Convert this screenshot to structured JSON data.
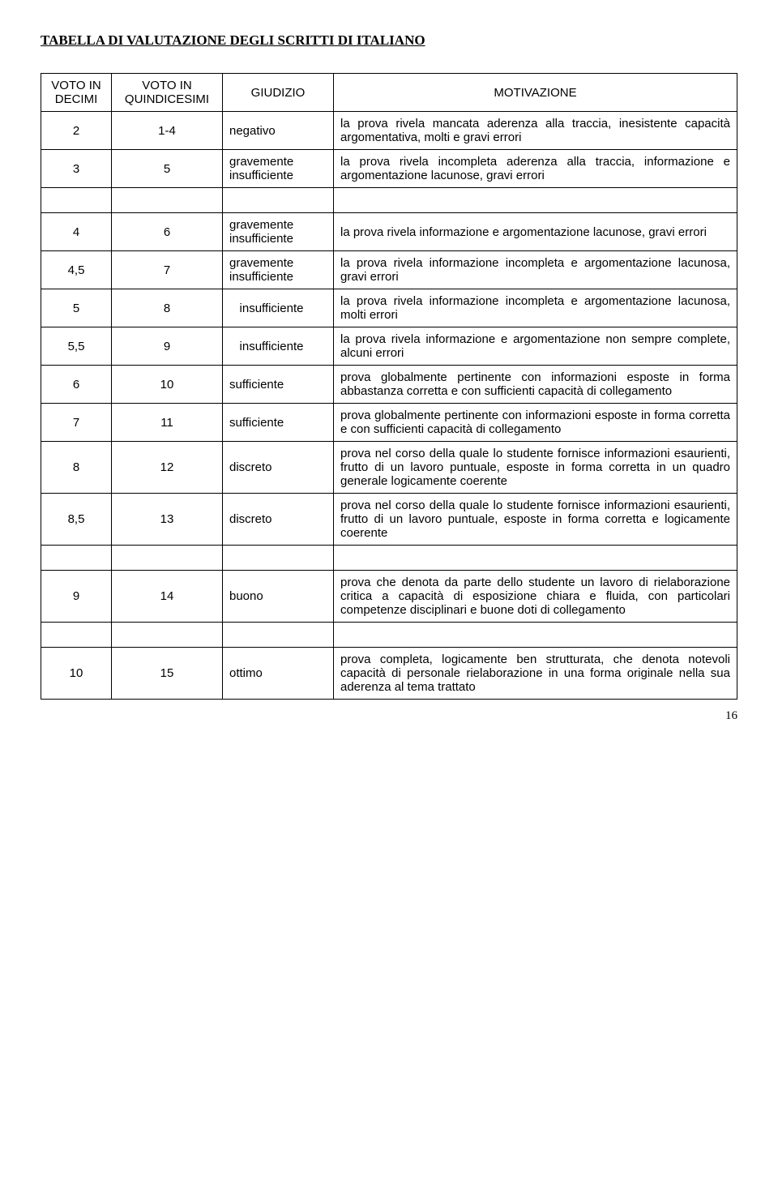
{
  "title": "TABELLA DI VALUTAZIONE DEGLI SCRITTI DI ITALIANO",
  "headers": {
    "decimi": "VOTO IN DECIMI",
    "quindicesimi": "VOTO IN QUINDICESIMI",
    "giudizio": "GIUDIZIO",
    "motivazione": "MOTIVAZIONE"
  },
  "rows": [
    {
      "decimi": "2",
      "quind": "1-4",
      "giudizio": "negativo",
      "motivazione": "la prova rivela mancata aderenza alla traccia, inesistente capacità argomentativa, molti e gravi errori"
    },
    {
      "decimi": "3",
      "quind": "5",
      "giudizio": "gravemente insufficiente",
      "motivazione": "la prova rivela incompleta aderenza alla traccia, informazione e argomentazione lacunose, gravi errori"
    },
    {
      "decimi": "4",
      "quind": "6",
      "giudizio": "gravemente insufficiente",
      "motivazione": "la prova rivela informazione e argomentazione lacunose, gravi errori"
    },
    {
      "decimi": "4,5",
      "quind": "7",
      "giudizio": "gravemente insufficiente",
      "motivazione": "la prova rivela informazione incompleta e argomentazione lacunosa, gravi errori"
    },
    {
      "decimi": "5",
      "quind": "8",
      "giudizio": "   insufficiente",
      "motivazione": "la prova rivela informazione incompleta e argomentazione lacunosa, molti errori"
    },
    {
      "decimi": "5,5",
      "quind": "9",
      "giudizio": "   insufficiente",
      "motivazione": "la prova rivela informazione e argomentazione non sempre complete, alcuni errori"
    },
    {
      "decimi": "6",
      "quind": "10",
      "giudizio": "sufficiente",
      "motivazione": "prova globalmente pertinente con informazioni esposte in forma abbastanza corretta e con sufficienti capacità di collegamento"
    },
    {
      "decimi": "7",
      "quind": "11",
      "giudizio": "sufficiente",
      "motivazione": "prova globalmente pertinente con informazioni esposte in forma corretta e con sufficienti capacità di collegamento"
    },
    {
      "decimi": "8",
      "quind": "12",
      "giudizio": "discreto",
      "motivazione": "prova nel corso della quale lo studente fornisce informazioni esaurienti, frutto di un lavoro puntuale, esposte in forma corretta in un quadro generale logicamente coerente"
    },
    {
      "decimi": "8,5",
      "quind": "13",
      "giudizio": "discreto",
      "motivazione": "prova nel corso della quale lo studente fornisce informazioni esaurienti, frutto di un lavoro puntuale, esposte in forma corretta e logicamente coerente"
    },
    {
      "decimi": "9",
      "quind": "14",
      "giudizio": "buono",
      "motivazione": "prova che denota da parte dello studente un lavoro di rielaborazione critica a capacità di esposizione chiara e fluida, con particolari competenze disciplinari e buone doti di collegamento"
    },
    {
      "decimi": "10",
      "quind": "15",
      "giudizio": "ottimo",
      "motivazione": "prova completa, logicamente ben strutturata, che denota notevoli capacità di personale rielaborazione in una forma originale nella sua aderenza al tema trattato"
    }
  ],
  "gaps_after": [
    1,
    9,
    10
  ],
  "pagenum": "16"
}
